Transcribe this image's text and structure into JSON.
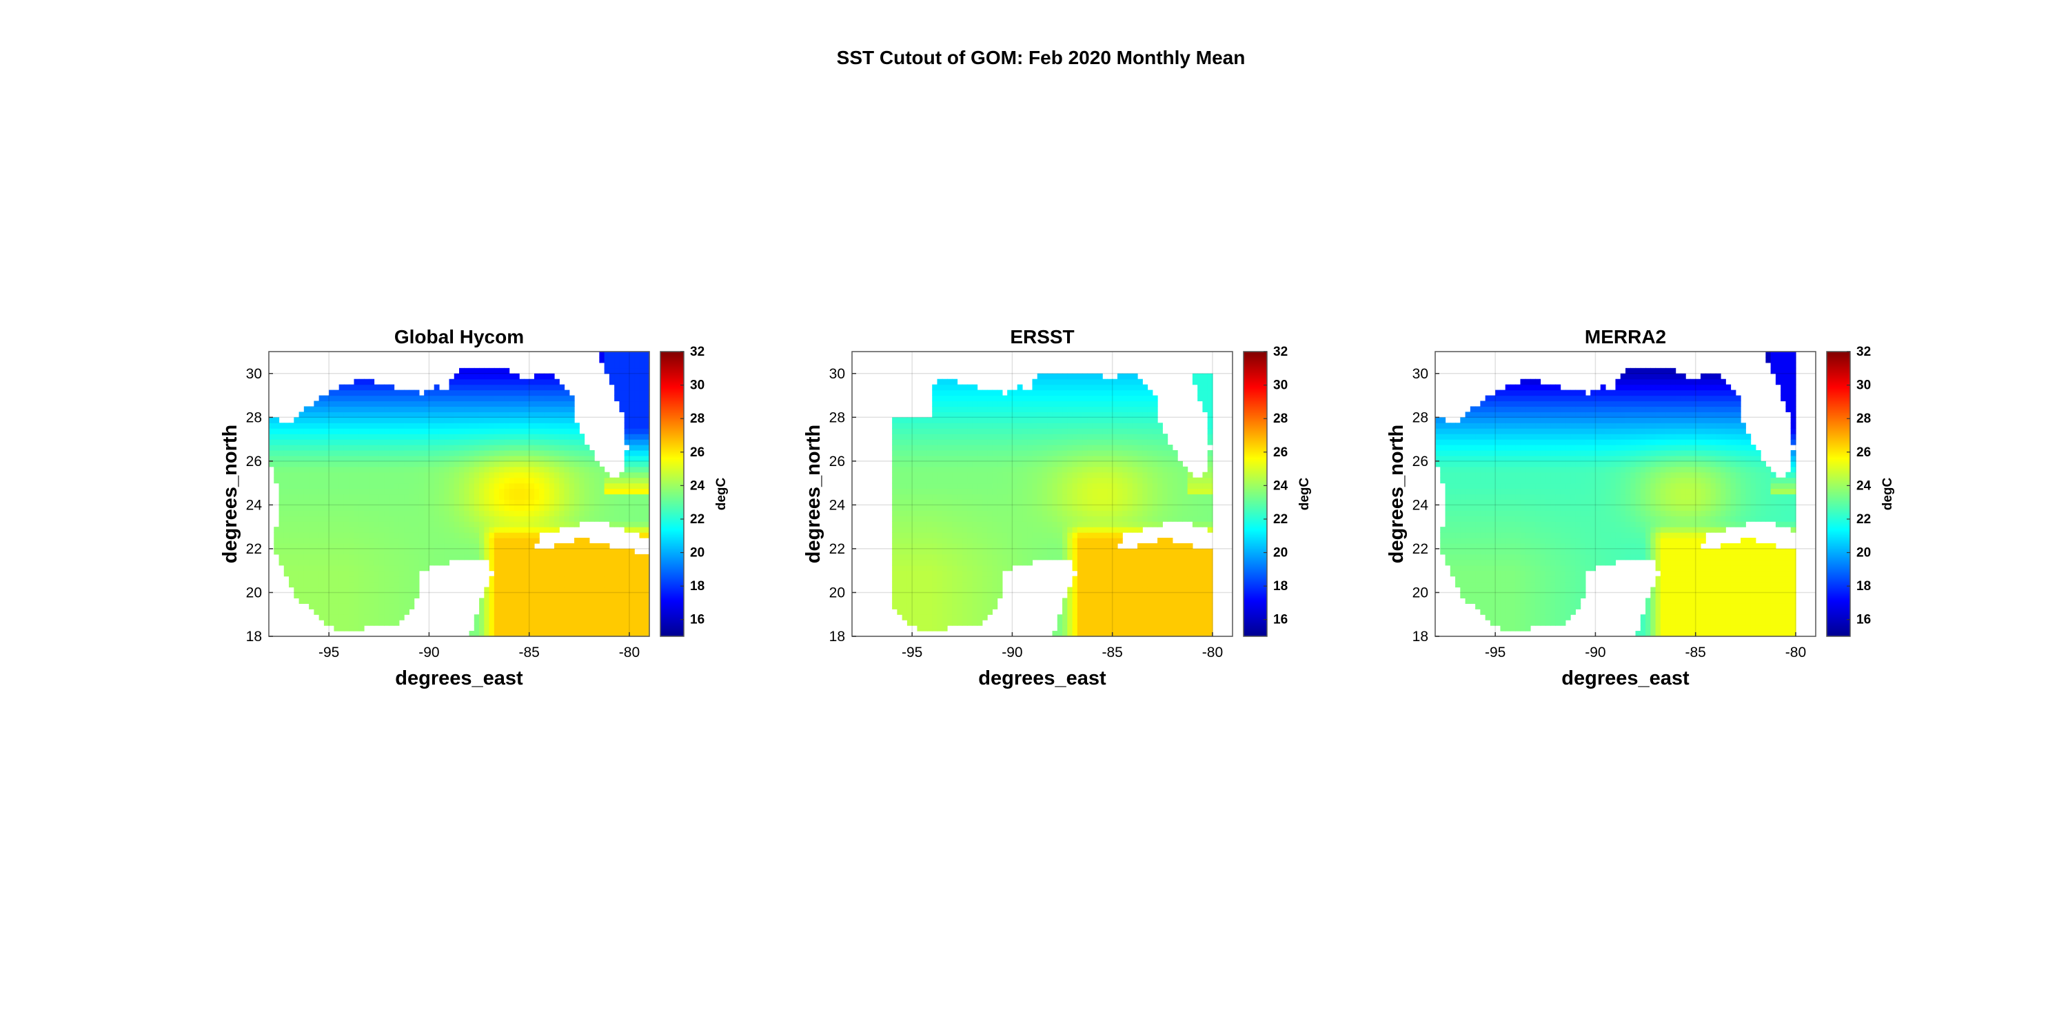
{
  "figure": {
    "title": "SST Cutout of GOM: Feb 2020 Monthly Mean"
  },
  "chart_data": [
    {
      "type": "heatmap",
      "title": "Global Hycom",
      "xlabel": "degrees_east",
      "ylabel": "degrees_north",
      "xlim": [
        -98,
        -79
      ],
      "ylim": [
        18,
        31
      ],
      "xticks": [
        -95,
        -90,
        -85,
        -80
      ],
      "yticks": [
        18,
        20,
        22,
        24,
        26,
        28,
        30
      ],
      "grid": true,
      "colorbar": {
        "label": "degC",
        "range": [
          15,
          32
        ],
        "ticks": [
          16,
          18,
          20,
          22,
          24,
          26,
          28,
          30,
          32
        ],
        "colormap": "jet"
      },
      "data_extent": {
        "lon": [
          -98,
          -79
        ],
        "lat": [
          18,
          31
        ]
      },
      "approx_values": {
        "north_coast": 17,
        "central_gulf": 23.5,
        "southwest": 24,
        "southeast_caribbean": 26.5,
        "loop_current": 26,
        "east_coast_north": 18
      }
    },
    {
      "type": "heatmap",
      "title": "ERSST",
      "xlabel": "degrees_east",
      "ylabel": "degrees_north",
      "xlim": [
        -98,
        -79
      ],
      "ylim": [
        18,
        31
      ],
      "xticks": [
        -95,
        -90,
        -85,
        -80
      ],
      "yticks": [
        18,
        20,
        22,
        24,
        26,
        28,
        30
      ],
      "grid": true,
      "colorbar": {
        "label": "degC",
        "range": [
          15,
          32
        ],
        "ticks": [
          16,
          18,
          20,
          22,
          24,
          26,
          28,
          30,
          32
        ],
        "colormap": "jet"
      },
      "data_extent": {
        "lon": [
          -96,
          -80
        ],
        "lat": [
          18,
          30
        ]
      },
      "approx_values": {
        "north_coast": 20.5,
        "central_gulf": 23.5,
        "southwest": 24.5,
        "southeast_caribbean": 26.5,
        "loop_current": 25,
        "east_coast_north": 22
      }
    },
    {
      "type": "heatmap",
      "title": "MERRA2",
      "xlabel": "degrees_east",
      "ylabel": "degrees_north",
      "xlim": [
        -98,
        -79
      ],
      "ylim": [
        18,
        31
      ],
      "xticks": [
        -95,
        -90,
        -85,
        -80
      ],
      "yticks": [
        18,
        20,
        22,
        24,
        26,
        28,
        30
      ],
      "grid": true,
      "colorbar": {
        "label": "degC",
        "range": [
          15,
          32
        ],
        "ticks": [
          16,
          18,
          20,
          22,
          24,
          26,
          28,
          30,
          32
        ],
        "colormap": "jet"
      },
      "data_extent": {
        "lon": [
          -98,
          -80
        ],
        "lat": [
          18,
          31
        ]
      },
      "approx_values": {
        "north_coast": 16,
        "central_gulf": 22.5,
        "southwest": 23.5,
        "southeast_caribbean": 25.5,
        "loop_current": 24.5,
        "east_coast_north": 17
      }
    }
  ]
}
